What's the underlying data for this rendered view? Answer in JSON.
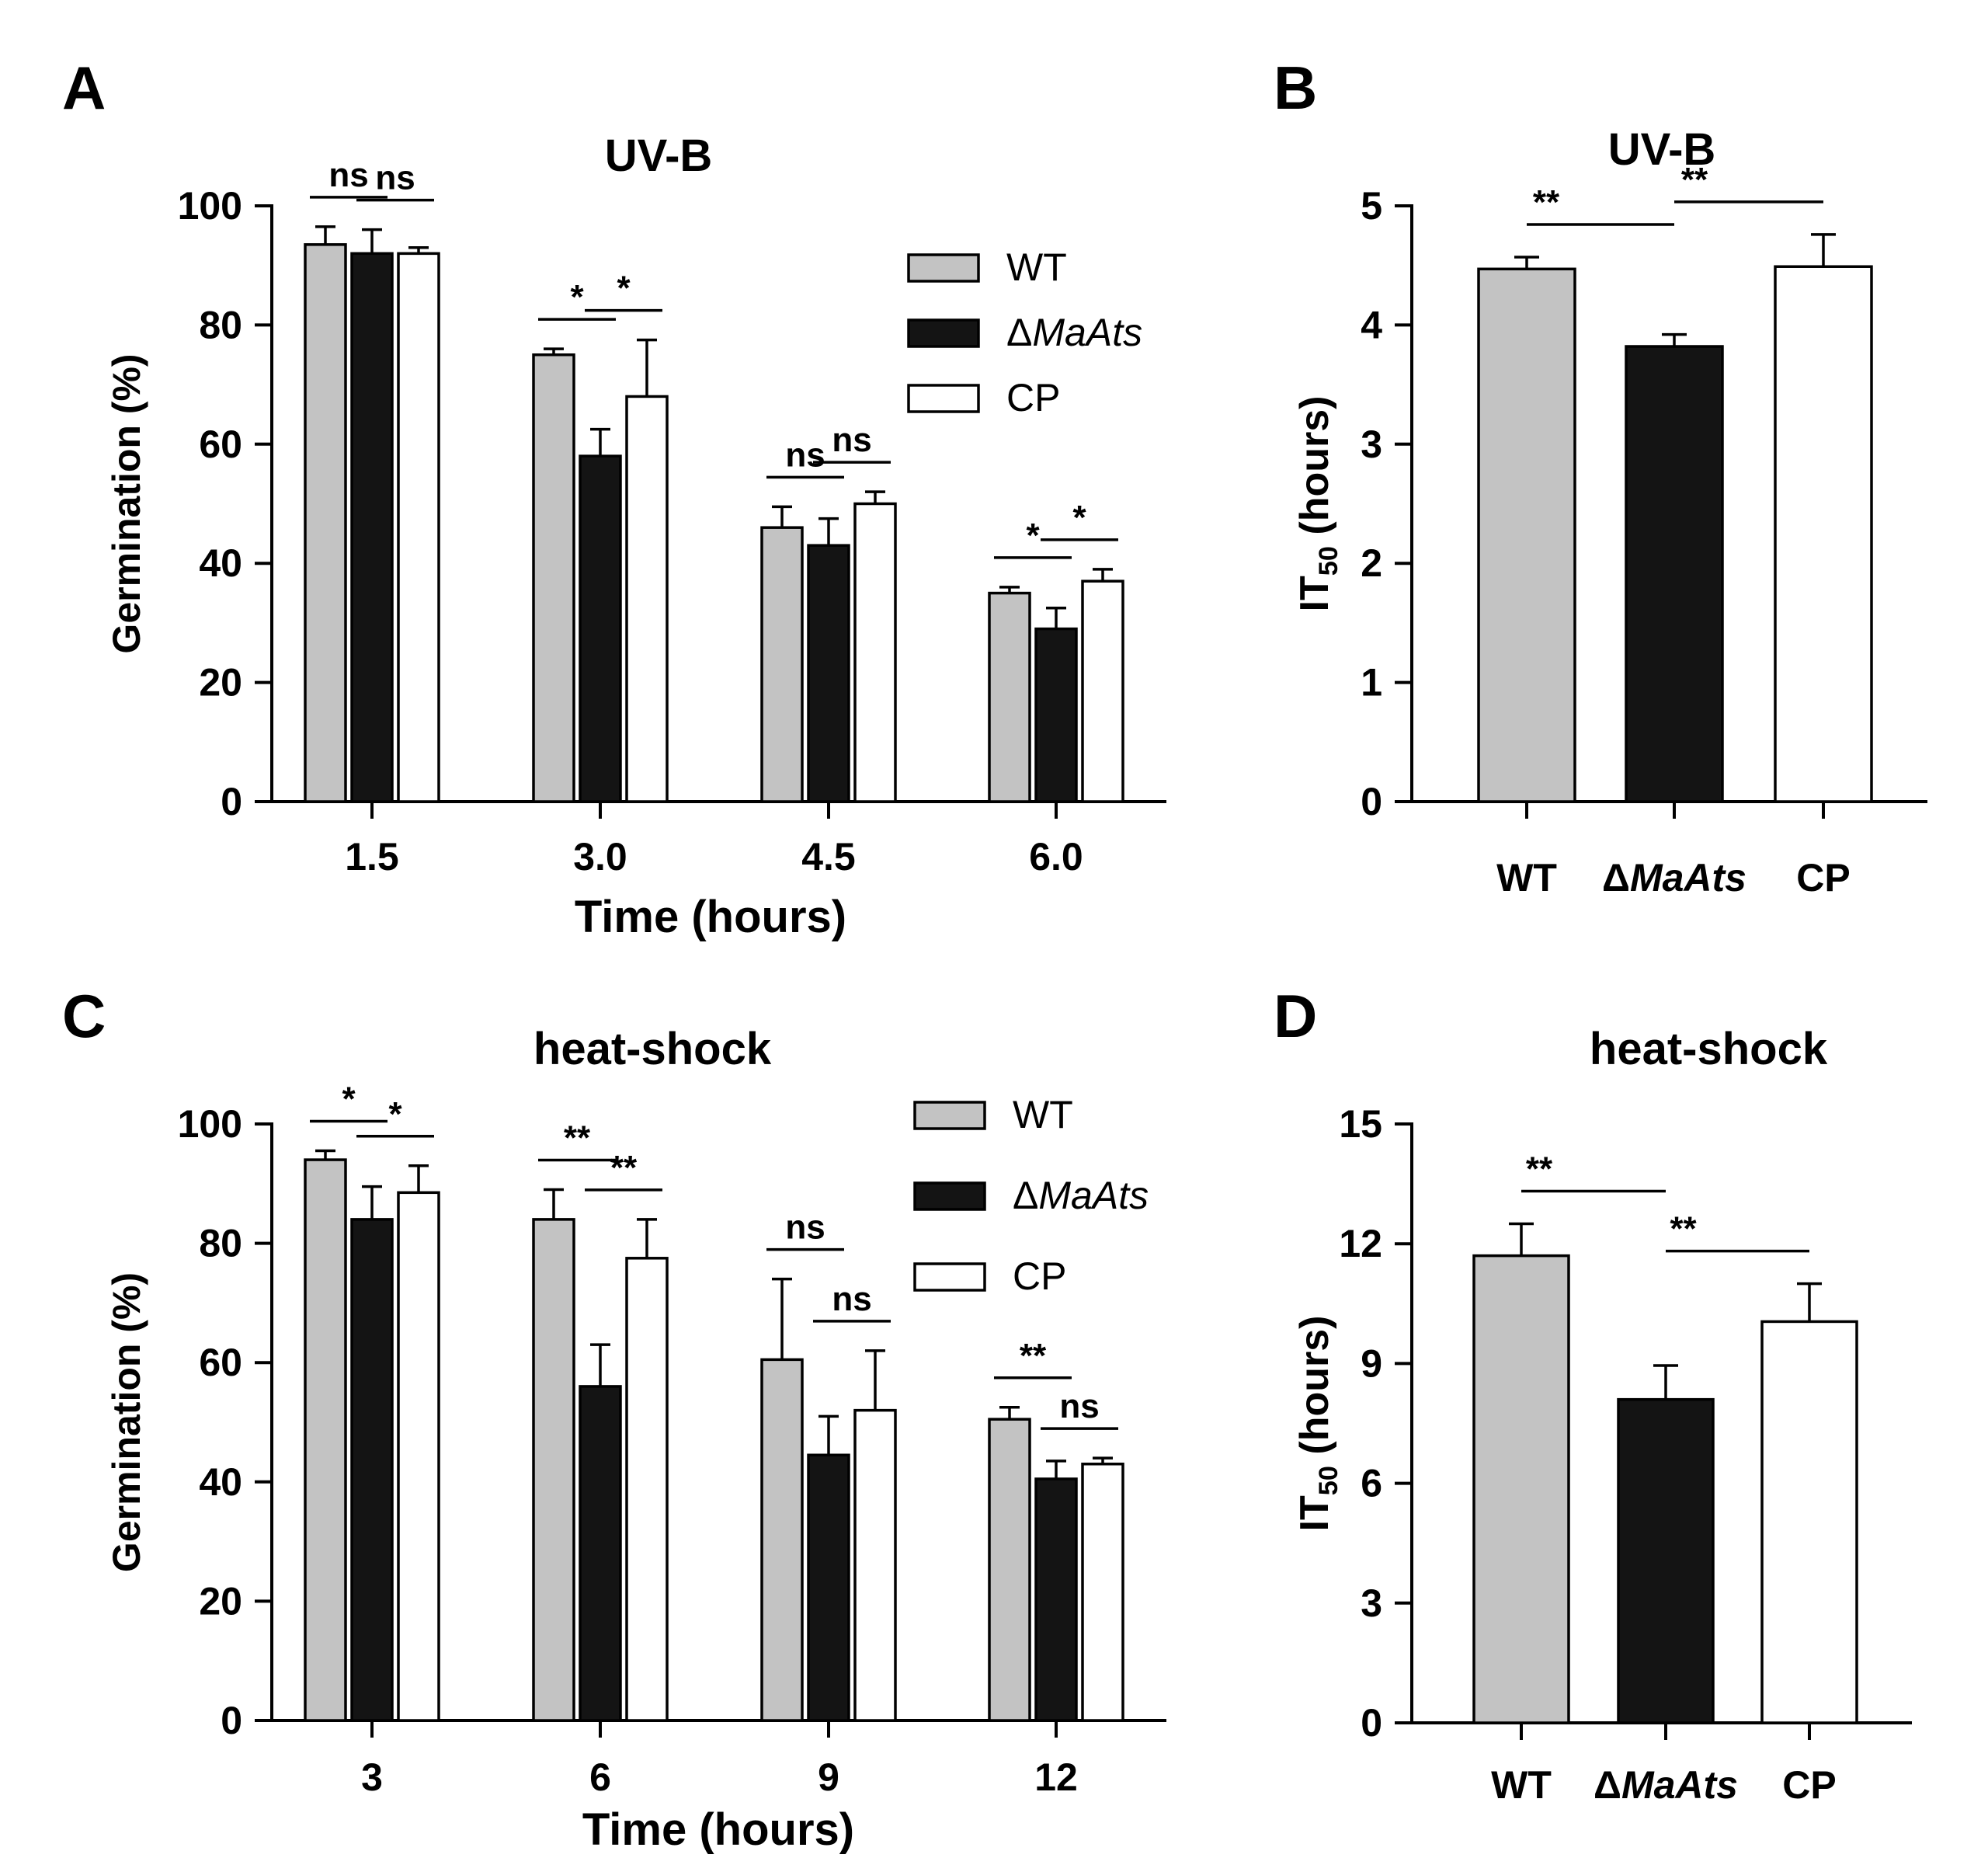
{
  "colors": {
    "WT": "#c3c3c3",
    "ΔMaAts": "#141414",
    "CP": "#ffffff"
  },
  "chart_data": [
    {
      "panel": "A",
      "type": "bar",
      "title": "UV-B",
      "xlabel": "Time (hours)",
      "ylabel": "Germination (%)",
      "ylim": [
        0,
        100
      ],
      "yticks": [
        0,
        20,
        40,
        60,
        80,
        100
      ],
      "categories": [
        "1.5",
        "3.0",
        "4.5",
        "6.0"
      ],
      "legend": {
        "position": "top-right",
        "entries": [
          "WT",
          "ΔMaAts",
          "CP"
        ]
      },
      "series": [
        {
          "name": "WT",
          "values": [
            93.5,
            75,
            46,
            35
          ],
          "errors": [
            3,
            1,
            3.5,
            1
          ]
        },
        {
          "name": "ΔMaAts",
          "values": [
            92,
            58,
            43,
            29
          ],
          "errors": [
            4,
            4.5,
            4.5,
            3.5
          ]
        },
        {
          "name": "CP",
          "values": [
            92,
            68,
            50,
            37
          ],
          "errors": [
            1,
            9.5,
            2,
            2
          ]
        }
      ],
      "significance": [
        {
          "category": "1.5",
          "pairs": [
            [
              "WT",
              "ΔMaAts",
              "ns"
            ],
            [
              "ΔMaAts",
              "CP",
              "ns"
            ]
          ]
        },
        {
          "category": "3.0",
          "pairs": [
            [
              "WT",
              "ΔMaAts",
              "*"
            ],
            [
              "ΔMaAts",
              "CP",
              "*"
            ]
          ]
        },
        {
          "category": "4.5",
          "pairs": [
            [
              "WT",
              "ΔMaAts",
              "ns"
            ],
            [
              "ΔMaAts",
              "CP",
              "ns"
            ]
          ]
        },
        {
          "category": "6.0",
          "pairs": [
            [
              "WT",
              "ΔMaAts",
              "*"
            ],
            [
              "ΔMaAts",
              "CP",
              "*"
            ]
          ]
        }
      ]
    },
    {
      "panel": "B",
      "type": "bar",
      "title": "UV-B",
      "xlabel": "",
      "ylabel": "IT50 (hours)",
      "ylim": [
        0,
        5
      ],
      "yticks": [
        0,
        1,
        2,
        3,
        4,
        5
      ],
      "categories": [
        "WT",
        "ΔMaAts",
        "CP"
      ],
      "values": [
        4.47,
        3.82,
        4.49
      ],
      "errors": [
        0.1,
        0.1,
        0.27
      ],
      "significance": [
        [
          "WT",
          "ΔMaAts",
          "**"
        ],
        [
          "ΔMaAts",
          "CP",
          "**"
        ]
      ]
    },
    {
      "panel": "C",
      "type": "bar",
      "title": "heat-shock",
      "xlabel": "Time (hours)",
      "ylabel": "Germination (%)",
      "ylim": [
        0,
        100
      ],
      "yticks": [
        0,
        20,
        40,
        60,
        80,
        100
      ],
      "categories": [
        "3",
        "6",
        "9",
        "12"
      ],
      "legend": {
        "position": "top-right",
        "entries": [
          "WT",
          "ΔMaAts",
          "CP"
        ]
      },
      "series": [
        {
          "name": "WT",
          "values": [
            94,
            84,
            60.5,
            50.5
          ],
          "errors": [
            1.5,
            5,
            13.5,
            2
          ]
        },
        {
          "name": "ΔMaAts",
          "values": [
            84,
            56,
            44.5,
            40.5
          ],
          "errors": [
            5.5,
            7,
            6.5,
            3
          ]
        },
        {
          "name": "CP",
          "values": [
            88.5,
            77.5,
            52,
            43
          ],
          "errors": [
            4.5,
            6.5,
            10,
            1
          ]
        }
      ],
      "significance": [
        {
          "category": "3",
          "pairs": [
            [
              "WT",
              "ΔMaAts",
              "*"
            ],
            [
              "ΔMaAts",
              "CP",
              "*"
            ]
          ]
        },
        {
          "category": "6",
          "pairs": [
            [
              "WT",
              "ΔMaAts",
              "**"
            ],
            [
              "ΔMaAts",
              "CP",
              "**"
            ]
          ]
        },
        {
          "category": "9",
          "pairs": [
            [
              "WT",
              "ΔMaAts",
              "ns"
            ],
            [
              "ΔMaAts",
              "CP",
              "ns"
            ]
          ]
        },
        {
          "category": "12",
          "pairs": [
            [
              "WT",
              "ΔMaAts",
              "**"
            ],
            [
              "ΔMaAts",
              "CP",
              "ns"
            ]
          ]
        }
      ]
    },
    {
      "panel": "D",
      "type": "bar",
      "title": "heat-shock",
      "xlabel": "",
      "ylabel": "IT50 (hours)",
      "ylim": [
        0,
        15
      ],
      "yticks": [
        0,
        3,
        6,
        9,
        12,
        15
      ],
      "categories": [
        "WT",
        "ΔMaAts",
        "CP"
      ],
      "values": [
        11.7,
        8.1,
        10.05
      ],
      "errors": [
        0.8,
        0.85,
        0.95
      ],
      "significance": [
        [
          "WT",
          "ΔMaAts",
          "**"
        ],
        [
          "ΔMaAts",
          "CP",
          "**"
        ]
      ]
    }
  ]
}
